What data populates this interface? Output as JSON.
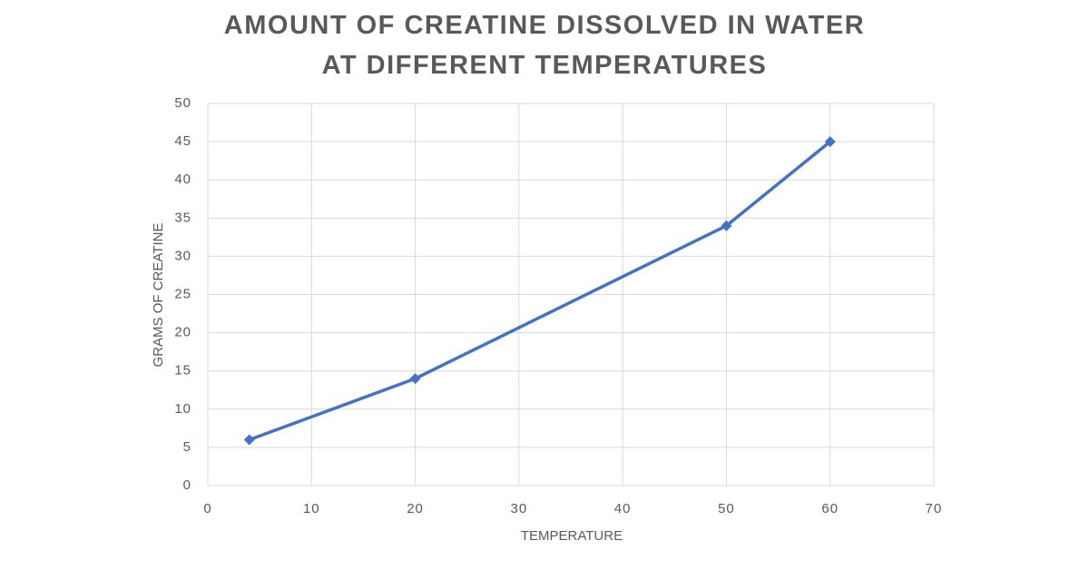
{
  "chart_data": {
    "type": "line",
    "title": "AMOUNT OF CREATINE DISSOLVED IN WATER AT DIFFERENT TEMPERATURES",
    "x_label": "TEMPERATURE",
    "y_label": "GRAMS OF CREATINE",
    "series": [
      {
        "x": [
          4,
          20,
          50,
          60
        ],
        "values": [
          6,
          14,
          34,
          45
        ],
        "color": "#4472c4"
      }
    ],
    "xlim": [
      0,
      70
    ],
    "xticks": [
      0,
      10,
      20,
      30,
      40,
      50,
      60,
      70
    ],
    "ylim": [
      0,
      50
    ],
    "yticks": [
      0,
      5,
      10,
      15,
      20,
      25,
      30,
      35,
      40,
      45,
      50
    ],
    "grid": true
  }
}
